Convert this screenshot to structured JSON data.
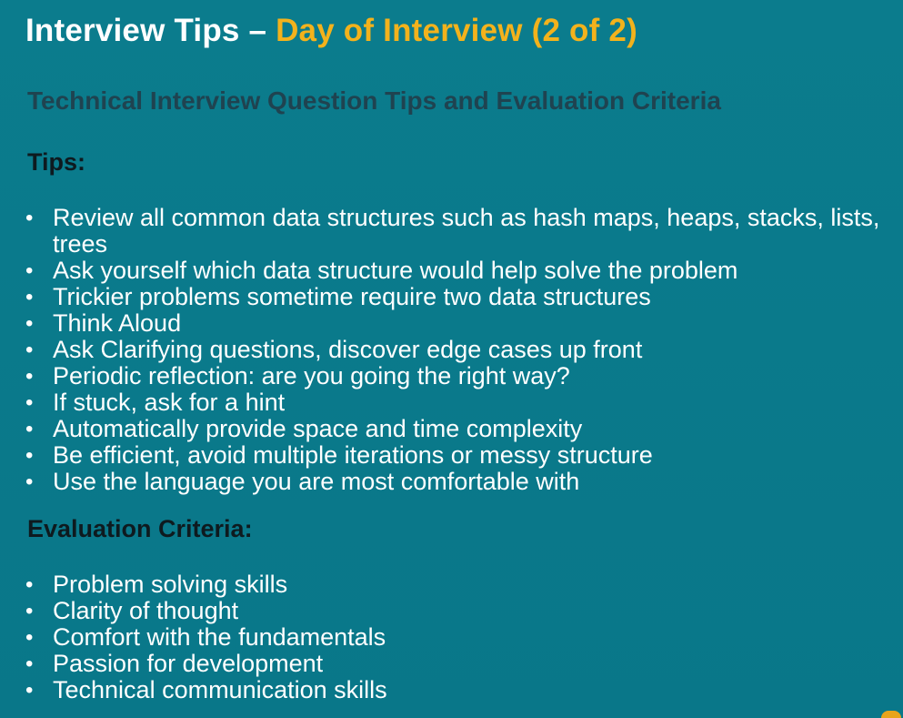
{
  "slide": {
    "title_prefix": "Interview Tips – ",
    "title_highlight": "Day of Interview (2 of 2)",
    "subtitle": "Technical Interview Question Tips and Evaluation Criteria",
    "tips_heading": "Tips:",
    "tips": [
      "Review all common data structures such as hash maps, heaps, stacks, lists, trees",
      "Ask yourself which data structure would help solve the problem",
      "Trickier problems sometime require two data structures",
      "Think Aloud",
      "Ask Clarifying questions, discover edge cases up front",
      "Periodic reflection:  are you going the right way?",
      "If stuck, ask for a hint",
      "Automatically provide space and time complexity",
      "Be efficient, avoid multiple iterations or messy structure",
      "Use the language you are most comfortable with"
    ],
    "eval_heading": "Evaluation Criteria:",
    "criteria": [
      "Problem solving skills",
      "Clarity of thought",
      "Comfort with the fundamentals",
      "Passion for development",
      "Technical communication skills"
    ],
    "bullet_char": "•"
  },
  "colors": {
    "background": "#0a7a8c",
    "title_white": "#ffffff",
    "title_gold": "#f3b21c",
    "subtitle": "#1f4350",
    "section_heading": "#0e1a1f",
    "body_text": "#ffffff"
  }
}
